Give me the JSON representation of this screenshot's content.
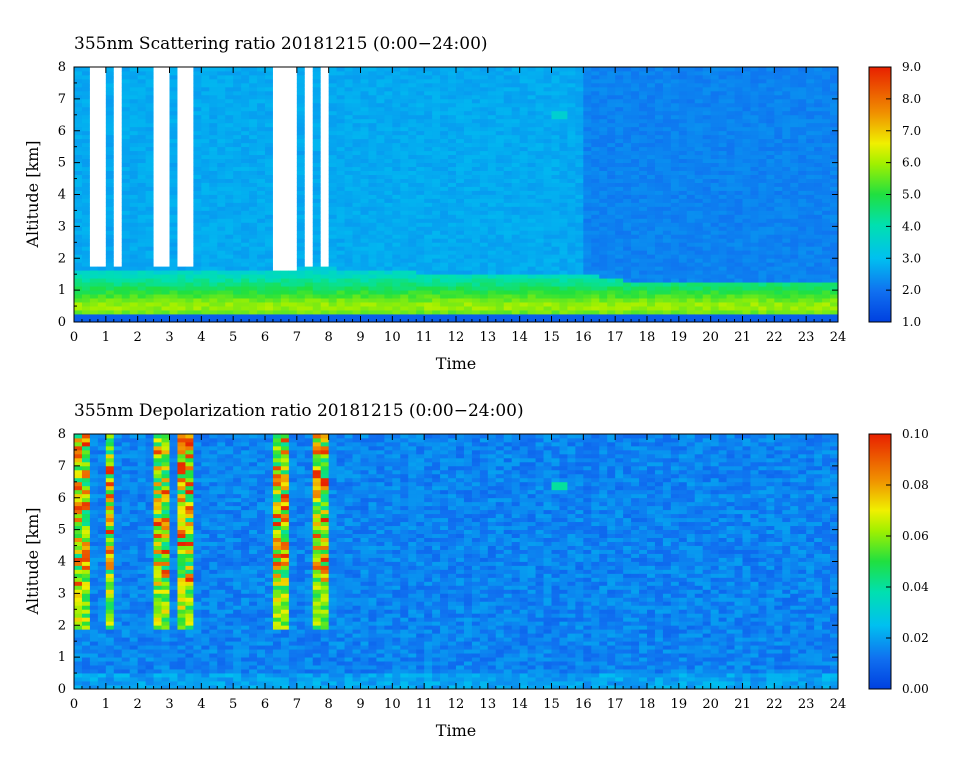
{
  "chart_data": [
    {
      "type": "heatmap",
      "title": "355nm Scattering ratio  20181215 (0:00−24:00)",
      "xlabel": "Time",
      "ylabel": "Altitude [km]",
      "xlim": [
        0,
        24
      ],
      "ylim": [
        0,
        8
      ],
      "x_ticks": [
        "0",
        "1",
        "2",
        "3",
        "4",
        "5",
        "6",
        "7",
        "8",
        "9",
        "10",
        "11",
        "12",
        "13",
        "14",
        "15",
        "16",
        "17",
        "18",
        "19",
        "20",
        "21",
        "22",
        "23",
        "24"
      ],
      "y_ticks": [
        "0",
        "1",
        "2",
        "3",
        "4",
        "5",
        "6",
        "7",
        "8"
      ],
      "colorbar": {
        "min": 1.0,
        "max": 9.0,
        "tick_labels": [
          "1.0",
          "2.0",
          "3.0",
          "4.0",
          "5.0",
          "6.0",
          "7.0",
          "8.0",
          "9.0"
        ]
      },
      "features": {
        "no_data_gaps_hours": [
          [
            0.6,
            0.9
          ],
          [
            1.2,
            1.4
          ],
          [
            2.6,
            2.9
          ],
          [
            3.2,
            3.8
          ],
          [
            5.9,
            6.1
          ],
          [
            6.3,
            7.0
          ],
          [
            7.3,
            7.5
          ],
          [
            7.7,
            8.0
          ]
        ],
        "gap_bottom_km": [
          1.7,
          1.7,
          1.7,
          1.7,
          1.7,
          1.6,
          1.7,
          1.7
        ],
        "boundary_layer_top_km": [
          [
            0,
            1.6
          ],
          [
            8,
            1.7
          ],
          [
            12,
            1.5
          ],
          [
            16,
            1.5
          ],
          [
            18,
            1.2
          ],
          [
            24,
            1.2
          ]
        ],
        "boundary_layer_peak": {
          "altitude_km": 0.5,
          "value": 6.0
        },
        "aloft_value_before_16h": 2.7,
        "aloft_value_after_16h": 2.2,
        "isolated_feature": {
          "time_h": 15.3,
          "altitude_km": 6.5,
          "value": 3.5
        }
      }
    },
    {
      "type": "heatmap",
      "title": "355nm Depolarization ratio  20181215 (0:00−24:00)",
      "xlabel": "Time",
      "ylabel": "Altitude [km]",
      "xlim": [
        0,
        24
      ],
      "ylim": [
        0,
        8
      ],
      "x_ticks": [
        "0",
        "1",
        "2",
        "3",
        "4",
        "5",
        "6",
        "7",
        "8",
        "9",
        "10",
        "11",
        "12",
        "13",
        "14",
        "15",
        "16",
        "17",
        "18",
        "19",
        "20",
        "21",
        "22",
        "23",
        "24"
      ],
      "y_ticks": [
        "0",
        "1",
        "2",
        "3",
        "4",
        "5",
        "6",
        "7",
        "8"
      ],
      "colorbar": {
        "min": 0.0,
        "max": 0.1,
        "tick_labels": [
          "0.00",
          "0.02",
          "0.04",
          "0.06",
          "0.08",
          "0.10"
        ]
      },
      "features": {
        "high_depol_columns_hours": [
          [
            0,
            0.5
          ],
          [
            0.9,
            1.2
          ],
          [
            2.6,
            2.9
          ],
          [
            3.3,
            3.8
          ],
          [
            6.3,
            6.8
          ],
          [
            7.6,
            7.9
          ]
        ],
        "high_depol_base_km": 1.9,
        "background_value": 0.015,
        "near_surface_value": 0.02,
        "isolated_feature": {
          "time_h": 15.3,
          "altitude_km": 6.4,
          "value": 0.04
        }
      }
    }
  ]
}
